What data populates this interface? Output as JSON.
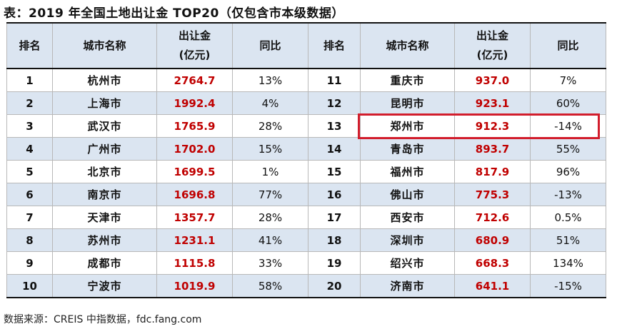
{
  "title": "表：2019 年全国土地出让金 TOP20（仅包含市本级数据）",
  "headers": {
    "rank": "排名",
    "city": "城市名称",
    "amount_line1": "出让金",
    "amount_line2": "(亿元)",
    "yoy": "同比"
  },
  "colors": {
    "amount": "#c00000",
    "band": "#dbe5f1",
    "highlight_border": "#d21d2c"
  },
  "left_rows": [
    {
      "rank": "1",
      "city": "杭州市",
      "amount": "2764.7",
      "yoy": "13%"
    },
    {
      "rank": "2",
      "city": "上海市",
      "amount": "1992.4",
      "yoy": "4%"
    },
    {
      "rank": "3",
      "city": "武汉市",
      "amount": "1765.9",
      "yoy": "28%"
    },
    {
      "rank": "4",
      "city": "广州市",
      "amount": "1702.0",
      "yoy": "15%"
    },
    {
      "rank": "5",
      "city": "北京市",
      "amount": "1699.5",
      "yoy": "1%"
    },
    {
      "rank": "6",
      "city": "南京市",
      "amount": "1696.8",
      "yoy": "77%"
    },
    {
      "rank": "7",
      "city": "天津市",
      "amount": "1357.7",
      "yoy": "28%"
    },
    {
      "rank": "8",
      "city": "苏州市",
      "amount": "1231.1",
      "yoy": "41%"
    },
    {
      "rank": "9",
      "city": "成都市",
      "amount": "1115.8",
      "yoy": "33%"
    },
    {
      "rank": "10",
      "city": "宁波市",
      "amount": "1019.9",
      "yoy": "58%"
    }
  ],
  "right_rows": [
    {
      "rank": "11",
      "city": "重庆市",
      "amount": "937.0",
      "yoy": "7%"
    },
    {
      "rank": "12",
      "city": "昆明市",
      "amount": "923.1",
      "yoy": "60%"
    },
    {
      "rank": "13",
      "city": "郑州市",
      "amount": "912.3",
      "yoy": "-14%"
    },
    {
      "rank": "14",
      "city": "青岛市",
      "amount": "893.7",
      "yoy": "55%"
    },
    {
      "rank": "15",
      "city": "福州市",
      "amount": "817.9",
      "yoy": "96%"
    },
    {
      "rank": "16",
      "city": "佛山市",
      "amount": "775.3",
      "yoy": "-13%"
    },
    {
      "rank": "17",
      "city": "西安市",
      "amount": "712.6",
      "yoy": "0.5%"
    },
    {
      "rank": "18",
      "city": "深圳市",
      "amount": "680.9",
      "yoy": "51%"
    },
    {
      "rank": "19",
      "city": "绍兴市",
      "amount": "668.3",
      "yoy": "134%"
    },
    {
      "rank": "20",
      "city": "济南市",
      "amount": "641.1",
      "yoy": "-15%"
    }
  ],
  "source": "数据来源：CREIS 中指数据，fdc.fang.com"
}
